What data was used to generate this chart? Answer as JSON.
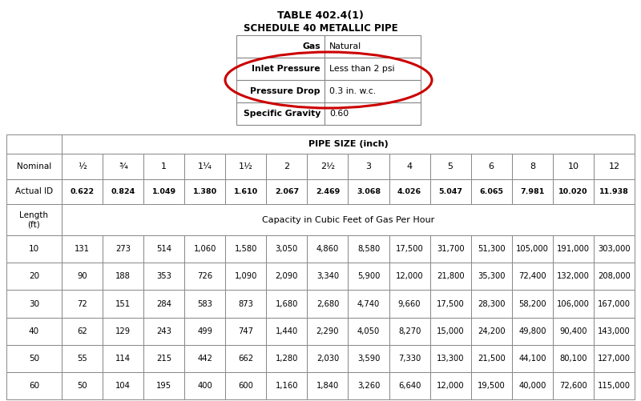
{
  "title": "TABLE 402.4(1)",
  "subtitle": "SCHEDULE 40 METALLIC PIPE",
  "info_rows": [
    [
      "Gas",
      "Natural"
    ],
    [
      "Inlet Pressure",
      "Less than 2 psi"
    ],
    [
      "Pressure Drop",
      "0.3 in. w.c."
    ],
    [
      "Specific Gravity",
      "0.60"
    ]
  ],
  "pipe_size_header": "PIPE SIZE (inch)",
  "nominal_labels": [
    "½",
    "¾",
    "1",
    "1¼",
    "1½",
    "2",
    "2½",
    "3",
    "4",
    "5",
    "6",
    "8",
    "10",
    "12"
  ],
  "actual_ids": [
    "0.622",
    "0.824",
    "1.049",
    "1.380",
    "1.610",
    "2.067",
    "2.469",
    "3.068",
    "4.026",
    "5.047",
    "6.065",
    "7.981",
    "10.020",
    "11.938"
  ],
  "capacity_label": "Capacity in Cubic Feet of Gas Per Hour",
  "data": [
    [
      10,
      131,
      273,
      514,
      "1,060",
      "1,580",
      "3,050",
      "4,860",
      "8,580",
      "17,500",
      "31,700",
      "51,300",
      "105,000",
      "191,000",
      "303,000"
    ],
    [
      20,
      90,
      188,
      353,
      726,
      "1,090",
      "2,090",
      "3,340",
      "5,900",
      "12,000",
      "21,800",
      "35,300",
      "72,400",
      "132,000",
      "208,000"
    ],
    [
      30,
      72,
      151,
      284,
      583,
      873,
      "1,680",
      "2,680",
      "4,740",
      "9,660",
      "17,500",
      "28,300",
      "58,200",
      "106,000",
      "167,000"
    ],
    [
      40,
      62,
      129,
      243,
      499,
      747,
      "1,440",
      "2,290",
      "4,050",
      "8,270",
      "15,000",
      "24,200",
      "49,800",
      "90,400",
      "143,000"
    ],
    [
      50,
      55,
      114,
      215,
      442,
      662,
      "1,280",
      "2,030",
      "3,590",
      "7,330",
      "13,300",
      "21,500",
      "44,100",
      "80,100",
      "127,000"
    ],
    [
      60,
      50,
      104,
      195,
      400,
      600,
      "1,160",
      "1,840",
      "3,260",
      "6,640",
      "12,000",
      "19,500",
      "40,000",
      "72,600",
      "115,000"
    ]
  ],
  "bg_color": "#ffffff",
  "grid_color": "#888888",
  "circle_color": "#cc0000",
  "title_fontsize": 9,
  "subtitle_fontsize": 8.5,
  "info_label_fontsize": 7.8,
  "info_val_fontsize": 7.8,
  "table_fontsize": 7.2,
  "header_fontsize": 8.0
}
